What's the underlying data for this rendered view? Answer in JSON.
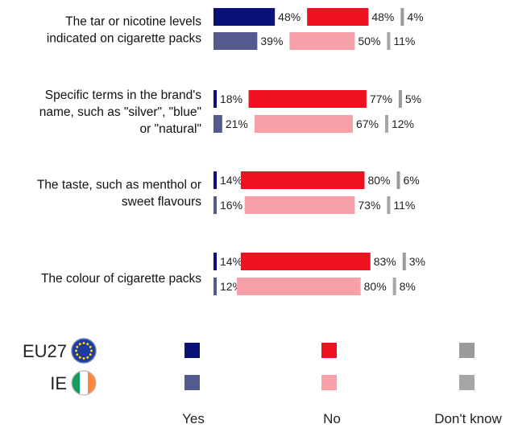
{
  "chart_data": {
    "type": "bar",
    "orientation": "horizontal",
    "stacked": true,
    "categories": [
      [
        "The tar or nicotine levels",
        "indicated on cigarette packs"
      ],
      [
        "Specific terms in the brand's",
        "name, such as \"silver\", \"blue\"",
        "or \"natural\""
      ],
      [
        "The taste, such as menthol or",
        "sweet flavours"
      ],
      [
        "The colour of cigarette packs"
      ]
    ],
    "groups": [
      "EU27",
      "IE"
    ],
    "segments": [
      "Yes",
      "No",
      "Don't know"
    ],
    "values": {
      "EU27": [
        [
          48,
          48,
          4
        ],
        [
          18,
          77,
          5
        ],
        [
          14,
          80,
          6
        ],
        [
          14,
          83,
          3
        ]
      ],
      "IE": [
        [
          39,
          50,
          11
        ],
        [
          21,
          67,
          12
        ],
        [
          16,
          73,
          11
        ],
        [
          12,
          80,
          8
        ]
      ]
    },
    "value_labels": {
      "EU27": [
        [
          "48%",
          "48%",
          "4%"
        ],
        [
          "18%",
          "77%",
          "5%"
        ],
        [
          "14%",
          "80%",
          "6%"
        ],
        [
          "14%",
          "83%",
          "3%"
        ]
      ],
      "IE": [
        [
          "39%",
          "50%",
          "11%"
        ],
        [
          "21%",
          "67%",
          "12%"
        ],
        [
          "16%",
          "73%",
          "11%"
        ],
        [
          "12%",
          "80%",
          "8%"
        ]
      ]
    },
    "colors": {
      "EU27": {
        "Yes": "#0a127a",
        "No": "#ee1122",
        "Don't know": "#9a9a9a"
      },
      "IE": {
        "Yes": "#535b8e",
        "No": "#f7a0a9",
        "Don't know": "#a6a6a6"
      }
    },
    "legend": {
      "placement": "bottom",
      "group_labels": [
        "EU27",
        "IE"
      ],
      "group_icons": [
        "eu-flag-icon",
        "ireland-flag-icon"
      ],
      "segment_labels": [
        "Yes",
        "No",
        "Don't know"
      ]
    },
    "xlim": [
      0,
      100
    ],
    "grid": false,
    "title": "",
    "xlabel": "",
    "ylabel": ""
  }
}
